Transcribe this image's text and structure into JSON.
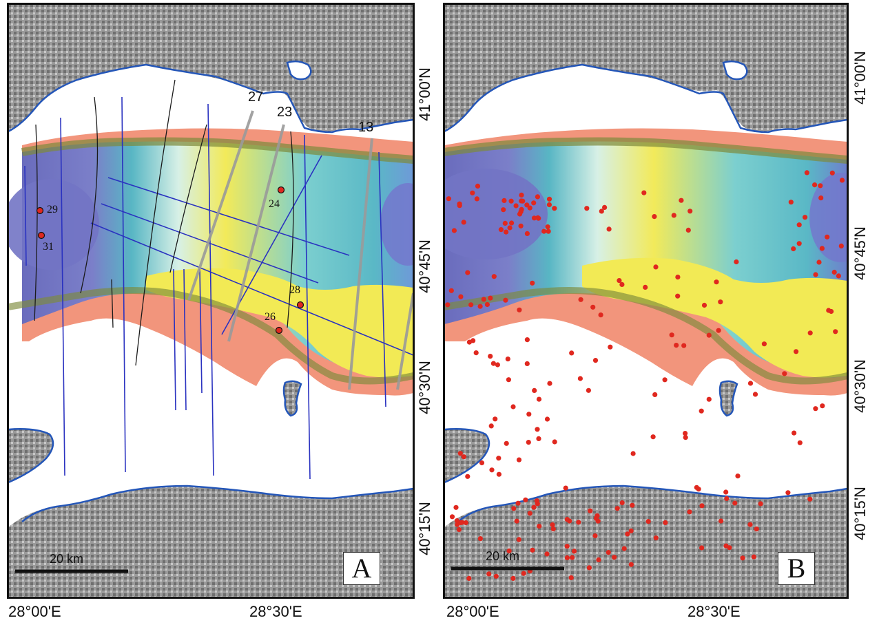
{
  "panel_a": {
    "letter": "A",
    "scale_label": "20 km",
    "line_labels": [
      "27",
      "23",
      "13"
    ],
    "site_labels": [
      "29",
      "31",
      "24",
      "28",
      "26"
    ]
  },
  "panel_b": {
    "letter": "B",
    "scale_label": "20 km"
  },
  "x_labels_a": [
    "28°00'E",
    "28°30'E"
  ],
  "x_labels_b": [
    "28°00'E",
    "28°30'E"
  ],
  "y_labels": [
    "41°00'N",
    "40°45'N",
    "40°30'N",
    "40°15'N"
  ],
  "colors": {
    "coastline": "#2456b8",
    "deep_basin": "#6e6fbf",
    "slope_cyan": "#4fb9c2",
    "shelf_yellow": "#f2ea55",
    "shelf_orange": "#f2957c",
    "site_marker": "#e0281f",
    "seismic_line_blue": "#2a32c0",
    "seismic_line_black": "#1a1a1a",
    "seismic_line_grey": "#9a9a9a"
  }
}
